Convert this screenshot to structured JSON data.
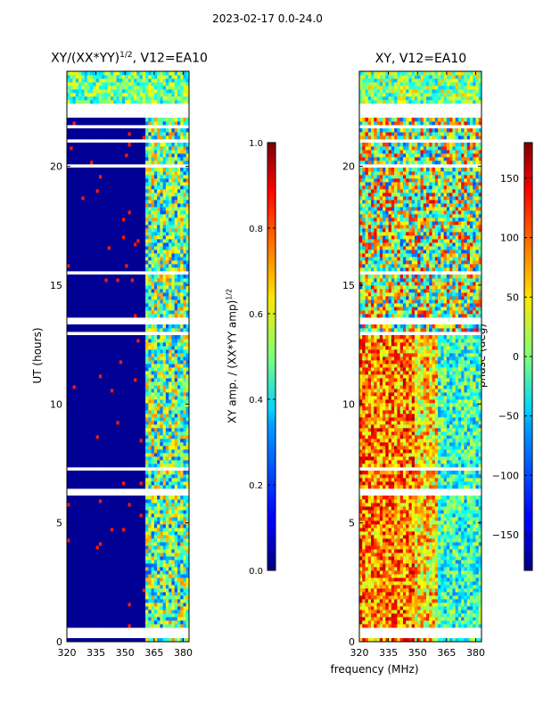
{
  "suptitle": "2023-02-17 0.0-24.0",
  "xlabel": "frequency (MHz)",
  "panels": [
    {
      "title": "XY/(XX*YY)",
      "title_sup": "1/2",
      "title_tail": ", V12=EA10",
      "ylabel": "UT (hours)",
      "colorbar_label": "XY amp. / (XX*YY amp)",
      "colorbar_label_sup": "1/2"
    },
    {
      "title": "XY, V12=EA10",
      "colorbar_label": "phase (deg)"
    }
  ],
  "chart_data": [
    {
      "type": "heatmap",
      "title": "XY/(XX*YY)^1/2, V12=EA10",
      "xlabel": "frequency (MHz)",
      "ylabel": "UT (hours)",
      "xlim": [
        320,
        383
      ],
      "ylim": [
        0,
        24
      ],
      "xticks": [
        320,
        335,
        350,
        365,
        380
      ],
      "yticks": [
        0,
        5,
        10,
        15,
        20
      ],
      "colorbar": {
        "label": "XY amp. / (XX*YY amp)^1/2",
        "range": [
          0.0,
          1.0
        ],
        "ticks": [
          0.0,
          0.2,
          0.4,
          0.6,
          0.8,
          1.0
        ],
        "tick_labels": [
          "0.0",
          "0.2",
          "0.4",
          "0.6",
          "0.8",
          "1.0"
        ]
      }
    },
    {
      "type": "heatmap",
      "title": "XY, V12=EA10",
      "xlabel": "frequency (MHz)",
      "ylabel": "",
      "xlim": [
        320,
        383
      ],
      "ylim": [
        0,
        24
      ],
      "xticks": [
        320,
        335,
        350,
        365,
        380
      ],
      "yticks": [
        0,
        5,
        10,
        15,
        20
      ],
      "colorbar": {
        "label": "phase (deg)",
        "range": [
          -180,
          180
        ],
        "ticks": [
          -150,
          -100,
          -50,
          0,
          50,
          100,
          150
        ],
        "tick_labels": [
          "−150",
          "−100",
          "−50",
          "0",
          "50",
          "100",
          "150"
        ]
      }
    }
  ],
  "colors": {
    "jet_dark": "#00007f",
    "jet_blue": "#0000ff",
    "jet_cyan": "#00ffff",
    "jet_yellow": "#ffff00",
    "jet_red": "#ff0000",
    "jet_darkred": "#7f0000"
  }
}
